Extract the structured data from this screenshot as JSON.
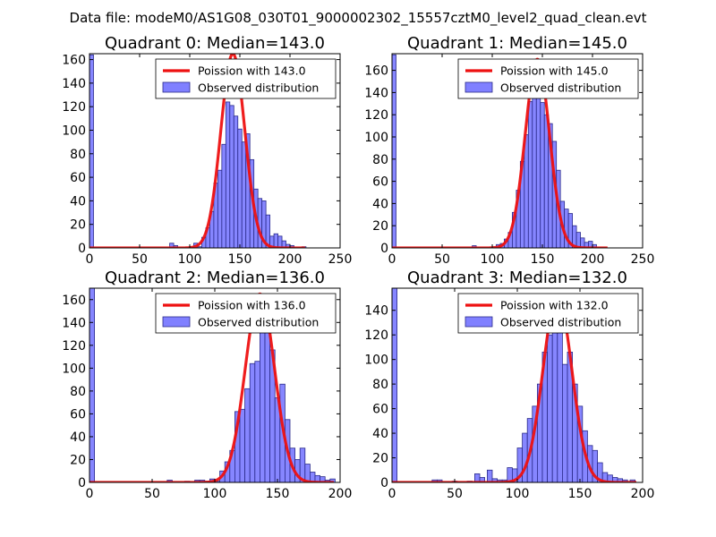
{
  "suptitle": "Data file: modeM0/AS1G08_030T01_9000002302_15557cztM0_level2_quad_clean.evt",
  "colors": {
    "bar_fill": "#8080ff",
    "bar_edge": "#2a2a8a",
    "fit_line": "#ee1111",
    "axes": "#000000"
  },
  "chart_data": [
    {
      "type": "bar",
      "title": "Quadrant 0: Median=143.0",
      "xlim": [
        0,
        250
      ],
      "ylim": [
        0,
        165
      ],
      "xticks": [
        0,
        50,
        100,
        150,
        200,
        250
      ],
      "yticks": [
        0,
        20,
        40,
        60,
        80,
        100,
        120,
        140,
        160
      ],
      "bin_width": 4,
      "bins": [
        {
          "x": 0,
          "y": 164
        },
        {
          "x": 80,
          "y": 4
        },
        {
          "x": 84,
          "y": 2
        },
        {
          "x": 100,
          "y": 1
        },
        {
          "x": 104,
          "y": 4
        },
        {
          "x": 108,
          "y": 1
        },
        {
          "x": 112,
          "y": 9
        },
        {
          "x": 116,
          "y": 17
        },
        {
          "x": 120,
          "y": 31
        },
        {
          "x": 124,
          "y": 55
        },
        {
          "x": 128,
          "y": 66
        },
        {
          "x": 132,
          "y": 88
        },
        {
          "x": 136,
          "y": 124
        },
        {
          "x": 140,
          "y": 121
        },
        {
          "x": 144,
          "y": 112
        },
        {
          "x": 148,
          "y": 101
        },
        {
          "x": 152,
          "y": 90
        },
        {
          "x": 156,
          "y": 97
        },
        {
          "x": 160,
          "y": 75
        },
        {
          "x": 164,
          "y": 50
        },
        {
          "x": 168,
          "y": 42
        },
        {
          "x": 172,
          "y": 40
        },
        {
          "x": 176,
          "y": 28
        },
        {
          "x": 180,
          "y": 10
        },
        {
          "x": 184,
          "y": 12
        },
        {
          "x": 188,
          "y": 10
        },
        {
          "x": 192,
          "y": 6
        },
        {
          "x": 196,
          "y": 3
        },
        {
          "x": 200,
          "y": 2
        },
        {
          "x": 212,
          "y": 1
        }
      ],
      "fit": {
        "label": "Poission with 143.0",
        "mean": 143.0,
        "peak": 165,
        "xmin": 0,
        "xmax": 215
      },
      "legend": [
        "Poission with 143.0",
        "Observed distribution"
      ],
      "legend_position": "top-right"
    },
    {
      "type": "bar",
      "title": "Quadrant 1: Median=145.0",
      "xlim": [
        0,
        250
      ],
      "ylim": [
        0,
        175
      ],
      "xticks": [
        0,
        50,
        100,
        150,
        200,
        250
      ],
      "yticks": [
        0,
        20,
        40,
        60,
        80,
        100,
        120,
        140,
        160
      ],
      "bin_width": 4,
      "bins": [
        {
          "x": 0,
          "y": 174
        },
        {
          "x": 80,
          "y": 2
        },
        {
          "x": 100,
          "y": 1
        },
        {
          "x": 104,
          "y": 3
        },
        {
          "x": 108,
          "y": 4
        },
        {
          "x": 112,
          "y": 8
        },
        {
          "x": 116,
          "y": 14
        },
        {
          "x": 120,
          "y": 32
        },
        {
          "x": 124,
          "y": 52
        },
        {
          "x": 128,
          "y": 78
        },
        {
          "x": 132,
          "y": 102
        },
        {
          "x": 136,
          "y": 132
        },
        {
          "x": 140,
          "y": 150
        },
        {
          "x": 144,
          "y": 138
        },
        {
          "x": 148,
          "y": 131
        },
        {
          "x": 152,
          "y": 120
        },
        {
          "x": 156,
          "y": 112
        },
        {
          "x": 160,
          "y": 96
        },
        {
          "x": 164,
          "y": 70
        },
        {
          "x": 168,
          "y": 42
        },
        {
          "x": 172,
          "y": 35
        },
        {
          "x": 176,
          "y": 31
        },
        {
          "x": 180,
          "y": 20
        },
        {
          "x": 184,
          "y": 14
        },
        {
          "x": 188,
          "y": 9
        },
        {
          "x": 192,
          "y": 5
        },
        {
          "x": 196,
          "y": 6
        },
        {
          "x": 200,
          "y": 3
        }
      ],
      "fit": {
        "label": "Poission with 145.0",
        "mean": 145.0,
        "peak": 170,
        "xmin": 0,
        "xmax": 215
      },
      "legend": [
        "Poission with 145.0",
        "Observed distribution"
      ],
      "legend_position": "top-right"
    },
    {
      "type": "bar",
      "title": "Quadrant 2: Median=136.0",
      "xlim": [
        0,
        200
      ],
      "ylim": [
        0,
        170
      ],
      "xticks": [
        0,
        50,
        100,
        150,
        200
      ],
      "yticks": [
        0,
        20,
        40,
        60,
        80,
        100,
        120,
        140,
        160
      ],
      "bin_width": 4,
      "bins": [
        {
          "x": 0,
          "y": 170
        },
        {
          "x": 62,
          "y": 2
        },
        {
          "x": 76,
          "y": 1
        },
        {
          "x": 84,
          "y": 2
        },
        {
          "x": 88,
          "y": 2
        },
        {
          "x": 92,
          "y": 1
        },
        {
          "x": 96,
          "y": 3
        },
        {
          "x": 100,
          "y": 1
        },
        {
          "x": 104,
          "y": 10
        },
        {
          "x": 108,
          "y": 18
        },
        {
          "x": 112,
          "y": 28
        },
        {
          "x": 116,
          "y": 62
        },
        {
          "x": 120,
          "y": 64
        },
        {
          "x": 124,
          "y": 82
        },
        {
          "x": 128,
          "y": 104
        },
        {
          "x": 132,
          "y": 106
        },
        {
          "x": 136,
          "y": 140
        },
        {
          "x": 140,
          "y": 152
        },
        {
          "x": 144,
          "y": 116
        },
        {
          "x": 148,
          "y": 74
        },
        {
          "x": 152,
          "y": 86
        },
        {
          "x": 156,
          "y": 55
        },
        {
          "x": 160,
          "y": 30
        },
        {
          "x": 164,
          "y": 20
        },
        {
          "x": 168,
          "y": 30
        },
        {
          "x": 172,
          "y": 16
        },
        {
          "x": 176,
          "y": 9
        },
        {
          "x": 180,
          "y": 6
        },
        {
          "x": 184,
          "y": 5
        },
        {
          "x": 188,
          "y": 2
        },
        {
          "x": 192,
          "y": 3
        }
      ],
      "fit": {
        "label": "Poission with 136.0",
        "mean": 136.0,
        "peak": 165,
        "xmin": 0,
        "xmax": 195
      },
      "legend": [
        "Poission with 136.0",
        "Observed distribution"
      ],
      "legend_position": "top-right"
    },
    {
      "type": "bar",
      "title": "Quadrant 3: Median=132.0",
      "xlim": [
        0,
        200
      ],
      "ylim": [
        0,
        158
      ],
      "xticks": [
        0,
        50,
        100,
        150,
        200
      ],
      "yticks": [
        0,
        20,
        40,
        60,
        80,
        100,
        120,
        140
      ],
      "bin_width": 4,
      "bins": [
        {
          "x": 0,
          "y": 158
        },
        {
          "x": 32,
          "y": 2
        },
        {
          "x": 36,
          "y": 2
        },
        {
          "x": 48,
          "y": 1
        },
        {
          "x": 60,
          "y": 1
        },
        {
          "x": 66,
          "y": 7
        },
        {
          "x": 70,
          "y": 4
        },
        {
          "x": 76,
          "y": 10
        },
        {
          "x": 80,
          "y": 3
        },
        {
          "x": 84,
          "y": 2
        },
        {
          "x": 88,
          "y": 2
        },
        {
          "x": 92,
          "y": 12
        },
        {
          "x": 96,
          "y": 11
        },
        {
          "x": 100,
          "y": 28
        },
        {
          "x": 104,
          "y": 40
        },
        {
          "x": 108,
          "y": 52
        },
        {
          "x": 112,
          "y": 62
        },
        {
          "x": 116,
          "y": 80
        },
        {
          "x": 120,
          "y": 106
        },
        {
          "x": 124,
          "y": 120
        },
        {
          "x": 128,
          "y": 140
        },
        {
          "x": 132,
          "y": 138
        },
        {
          "x": 136,
          "y": 96
        },
        {
          "x": 140,
          "y": 106
        },
        {
          "x": 144,
          "y": 80
        },
        {
          "x": 148,
          "y": 62
        },
        {
          "x": 152,
          "y": 42
        },
        {
          "x": 156,
          "y": 30
        },
        {
          "x": 160,
          "y": 26
        },
        {
          "x": 164,
          "y": 16
        },
        {
          "x": 168,
          "y": 8
        },
        {
          "x": 172,
          "y": 6
        },
        {
          "x": 176,
          "y": 4
        },
        {
          "x": 180,
          "y": 3
        },
        {
          "x": 184,
          "y": 2
        },
        {
          "x": 190,
          "y": 2
        }
      ],
      "fit": {
        "label": "Poission with 132.0",
        "mean": 132.0,
        "peak": 152,
        "xmin": 0,
        "xmax": 195
      },
      "legend": [
        "Poission with 132.0",
        "Observed distribution"
      ],
      "legend_position": "top-right"
    }
  ]
}
